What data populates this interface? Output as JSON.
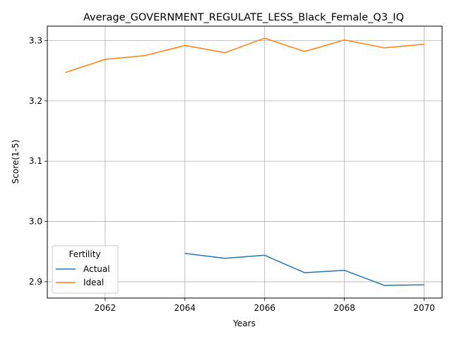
{
  "chart_data": {
    "type": "line",
    "title": "Average_GOVERNMENT_REGULATE_LESS_Black_Female_Q3_IQ",
    "xlabel": "Years",
    "ylabel": "Score(1-5)",
    "xlim": [
      2060.55,
      2070.45
    ],
    "ylim": [
      2.873,
      3.324
    ],
    "xticks": [
      2062,
      2064,
      2066,
      2068,
      2070
    ],
    "yticks": [
      2.9,
      3.0,
      3.1,
      3.2,
      3.3
    ],
    "xtick_labels": [
      "2062",
      "2064",
      "2066",
      "2068",
      "2070"
    ],
    "ytick_labels": [
      "2.9",
      "3.0",
      "3.1",
      "3.2",
      "3.3"
    ],
    "grid": true,
    "legend": {
      "title": "Fertility",
      "placement": "lower-left"
    },
    "series": [
      {
        "name": "Actual",
        "color": "#1f77b4",
        "x": [
          2064,
          2065,
          2066,
          2067,
          2068,
          2069,
          2070
        ],
        "y": [
          2.947,
          2.939,
          2.944,
          2.915,
          2.919,
          2.894,
          2.895
        ]
      },
      {
        "name": "Ideal",
        "color": "#ff7f0e",
        "x": [
          2061,
          2062,
          2063,
          2064,
          2065,
          2066,
          2067,
          2068,
          2069,
          2070
        ],
        "y": [
          3.247,
          3.269,
          3.275,
          3.292,
          3.28,
          3.304,
          3.282,
          3.301,
          3.288,
          3.294
        ]
      }
    ]
  }
}
